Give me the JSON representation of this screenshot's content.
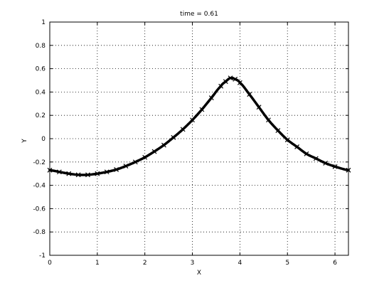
{
  "chart_data": {
    "type": "line",
    "title": "time = 0.61",
    "xlabel": "X",
    "ylabel": "Y",
    "xlim": [
      0,
      6.2832
    ],
    "ylim": [
      -1,
      1
    ],
    "xticks": [
      0,
      1,
      2,
      3,
      4,
      5,
      6
    ],
    "yticks": [
      -1,
      -0.8,
      -0.6,
      -0.4,
      -0.2,
      0,
      0.2,
      0.4,
      0.6,
      0.8,
      1
    ],
    "xtick_labels": [
      "0",
      "1",
      "2",
      "3",
      "4",
      "5",
      "6"
    ],
    "ytick_labels": [
      "-1",
      "-0.8",
      "-0.6",
      "-0.4",
      "-0.2",
      "0",
      "0.2",
      "0.4",
      "0.6",
      "0.8",
      "1"
    ],
    "grid": true,
    "series_color": "#000000",
    "marker": "x",
    "x": [
      0,
      0.2,
      0.4,
      0.6,
      0.8,
      1.0,
      1.2,
      1.4,
      1.6,
      1.8,
      2.0,
      2.2,
      2.4,
      2.6,
      2.8,
      3.0,
      3.2,
      3.4,
      3.6,
      3.7,
      3.8,
      3.9,
      4.0,
      4.2,
      4.4,
      4.6,
      4.8,
      5.0,
      5.2,
      5.4,
      5.6,
      5.8,
      6.0,
      6.2832
    ],
    "y": [
      -0.27,
      -0.285,
      -0.3,
      -0.31,
      -0.31,
      -0.3,
      -0.285,
      -0.265,
      -0.235,
      -0.2,
      -0.16,
      -0.11,
      -0.055,
      0.01,
      0.08,
      0.16,
      0.25,
      0.35,
      0.45,
      0.49,
      0.52,
      0.51,
      0.48,
      0.38,
      0.27,
      0.16,
      0.07,
      -0.01,
      -0.07,
      -0.13,
      -0.17,
      -0.21,
      -0.24,
      -0.27
    ]
  }
}
